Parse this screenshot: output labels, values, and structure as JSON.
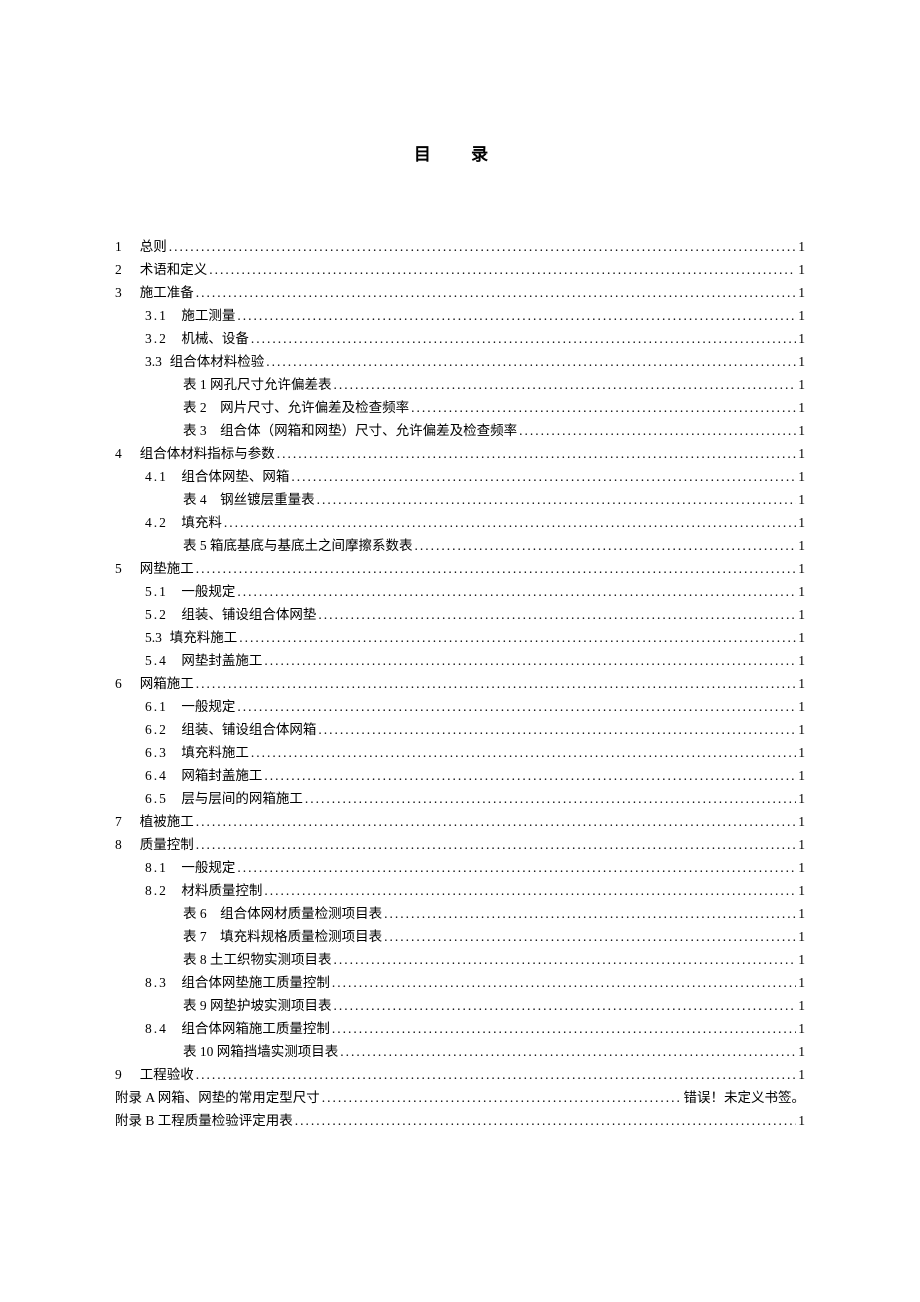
{
  "title": "目 录",
  "toc": [
    {
      "num": "1",
      "label": "总则",
      "page": "1",
      "indent": 0
    },
    {
      "num": "2",
      "label": "术语和定义",
      "page": "1",
      "indent": 0
    },
    {
      "num": "3",
      "label": "施工准备",
      "page": "1",
      "indent": 0
    },
    {
      "num": "3.1",
      "label": "施工测量",
      "page": "1",
      "indent": 1,
      "spaced": true,
      "gap": true
    },
    {
      "num": "3.2",
      "label": "机械、设备",
      "page": "1",
      "indent": 1,
      "spaced": true,
      "gap": true
    },
    {
      "num": "3.3",
      "label": "组合体材料检验",
      "page": "1",
      "indent": 1
    },
    {
      "num": "",
      "label": "表 1 网孔尺寸允许偏差表",
      "page": "1",
      "indent": 2
    },
    {
      "num": "",
      "label": "表 2　网片尺寸、允许偏差及检查频率",
      "page": "1",
      "indent": 2
    },
    {
      "num": "",
      "label": "表 3　组合体（网箱和网垫）尺寸、允许偏差及检查频率",
      "page": "1",
      "indent": 2
    },
    {
      "num": "4",
      "label": "组合体材料指标与参数",
      "page": "1",
      "indent": 0
    },
    {
      "num": "4.1",
      "label": "组合体网垫、网箱",
      "page": "1",
      "indent": 1,
      "spaced": true,
      "gap": true
    },
    {
      "num": "",
      "label": "表 4　钢丝镀层重量表",
      "page": "1",
      "indent": 2
    },
    {
      "num": "4.2",
      "label": "填充料",
      "page": "1",
      "indent": 1,
      "spaced": true,
      "gap": true
    },
    {
      "num": "",
      "label": "表 5 箱底基底与基底土之间摩擦系数表",
      "page": "1",
      "indent": 2
    },
    {
      "num": "5",
      "label": "网垫施工",
      "page": "1",
      "indent": 0
    },
    {
      "num": "5.1",
      "label": "一般规定",
      "page": "1",
      "indent": 1,
      "spaced": true,
      "gap": true
    },
    {
      "num": "5.2",
      "label": "组装、铺设组合体网垫",
      "page": "1",
      "indent": 1,
      "spaced": true,
      "gap": true
    },
    {
      "num": "5.3",
      "label": "填充料施工",
      "page": "1",
      "indent": 1
    },
    {
      "num": "5.4",
      "label": "网垫封盖施工",
      "page": "1",
      "indent": 1,
      "spaced": true,
      "gap": true
    },
    {
      "num": "6",
      "label": "网箱施工",
      "page": "1",
      "indent": 0
    },
    {
      "num": "6.1",
      "label": "一般规定",
      "page": "1",
      "indent": 1,
      "spaced": true,
      "gap": true
    },
    {
      "num": "6.2",
      "label": "组装、铺设组合体网箱",
      "page": "1",
      "indent": 1,
      "spaced": true,
      "gap": true
    },
    {
      "num": "6.3",
      "label": "填充料施工",
      "page": "1",
      "indent": 1,
      "spaced": true,
      "gap": true
    },
    {
      "num": "6.4",
      "label": "网箱封盖施工",
      "page": "1",
      "indent": 1,
      "spaced": true,
      "gap": true
    },
    {
      "num": "6.5",
      "label": "层与层间的网箱施工",
      "page": "1",
      "indent": 1,
      "spaced": true,
      "gap": true
    },
    {
      "num": "7",
      "label": "植被施工",
      "page": "1",
      "indent": 0
    },
    {
      "num": "8",
      "label": "质量控制",
      "page": "1",
      "indent": 0
    },
    {
      "num": "8.1",
      "label": "一般规定",
      "page": "1",
      "indent": 1,
      "spaced": true,
      "gap": true
    },
    {
      "num": "8.2",
      "label": "材料质量控制",
      "page": "1",
      "indent": 1,
      "spaced": true,
      "gap": true
    },
    {
      "num": "",
      "label": "表 6　组合体网材质量检测项目表",
      "page": "1",
      "indent": 2
    },
    {
      "num": "",
      "label": "表 7　填充料规格质量检测项目表",
      "page": "1",
      "indent": 2
    },
    {
      "num": "",
      "label": "表 8 土工织物实测项目表",
      "page": "1",
      "indent": 2
    },
    {
      "num": "8.3",
      "label": "组合体网垫施工质量控制",
      "page": "1",
      "indent": 1,
      "spaced": true,
      "gap": true
    },
    {
      "num": "",
      "label": "表 9 网垫护坡实测项目表",
      "page": "1",
      "indent": 2
    },
    {
      "num": "8.4",
      "label": "组合体网箱施工质量控制",
      "page": "1",
      "indent": 1,
      "spaced": true,
      "gap": true
    },
    {
      "num": "",
      "label": "表 10 网箱挡墙实测项目表",
      "page": "1",
      "indent": 2
    },
    {
      "num": "9",
      "label": "工程验收",
      "page": "1",
      "indent": 0
    },
    {
      "num": "",
      "label": "附录 A 网箱、网垫的常用定型尺寸",
      "page": "错误！未定义书签。",
      "indent": 0,
      "nodots": false
    },
    {
      "num": "",
      "label": "附录 B 工程质量检验评定用表",
      "page": "1",
      "indent": 0
    }
  ],
  "dots": "....................................................................................................................................................................................................."
}
